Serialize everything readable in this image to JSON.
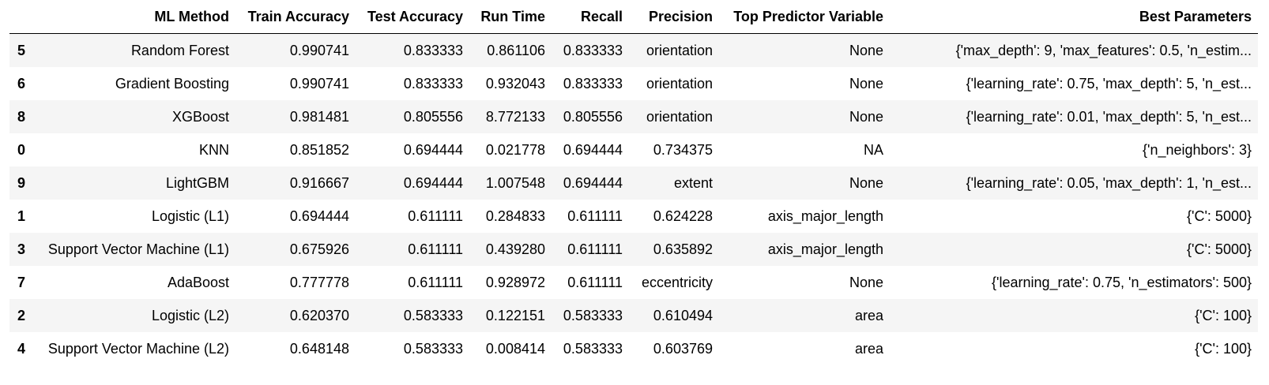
{
  "table": {
    "headers": [
      "",
      "ML Method",
      "Train Accuracy",
      "Test Accuracy",
      "Run Time",
      "Recall",
      "Precision",
      "Top Predictor Variable",
      "Best Parameters"
    ],
    "rows": [
      [
        "5",
        "Random Forest",
        "0.990741",
        "0.833333",
        "0.861106",
        "0.833333",
        "orientation",
        "None",
        "{'max_depth': 9, 'max_features': 0.5, 'n_estim..."
      ],
      [
        "6",
        "Gradient Boosting",
        "0.990741",
        "0.833333",
        "0.932043",
        "0.833333",
        "orientation",
        "None",
        "{'learning_rate': 0.75, 'max_depth': 5, 'n_est..."
      ],
      [
        "8",
        "XGBoost",
        "0.981481",
        "0.805556",
        "8.772133",
        "0.805556",
        "orientation",
        "None",
        "{'learning_rate': 0.01, 'max_depth': 5, 'n_est..."
      ],
      [
        "0",
        "KNN",
        "0.851852",
        "0.694444",
        "0.021778",
        "0.694444",
        "0.734375",
        "NA",
        "{'n_neighbors': 3}"
      ],
      [
        "9",
        "LightGBM",
        "0.916667",
        "0.694444",
        "1.007548",
        "0.694444",
        "extent",
        "None",
        "{'learning_rate': 0.05, 'max_depth': 1, 'n_est..."
      ],
      [
        "1",
        "Logistic (L1)",
        "0.694444",
        "0.611111",
        "0.284833",
        "0.611111",
        "0.624228",
        "axis_major_length",
        "{'C': 5000}"
      ],
      [
        "3",
        "Support Vector Machine (L1)",
        "0.675926",
        "0.611111",
        "0.439280",
        "0.611111",
        "0.635892",
        "axis_major_length",
        "{'C': 5000}"
      ],
      [
        "7",
        "AdaBoost",
        "0.777778",
        "0.611111",
        "0.928972",
        "0.611111",
        "eccentricity",
        "None",
        "{'learning_rate': 0.75, 'n_estimators': 500}"
      ],
      [
        "2",
        "Logistic (L2)",
        "0.620370",
        "0.583333",
        "0.122151",
        "0.583333",
        "0.610494",
        "area",
        "{'C': 100}"
      ],
      [
        "4",
        "Support Vector Machine (L2)",
        "0.648148",
        "0.583333",
        "0.008414",
        "0.583333",
        "0.603769",
        "area",
        "{'C': 100}"
      ]
    ]
  }
}
